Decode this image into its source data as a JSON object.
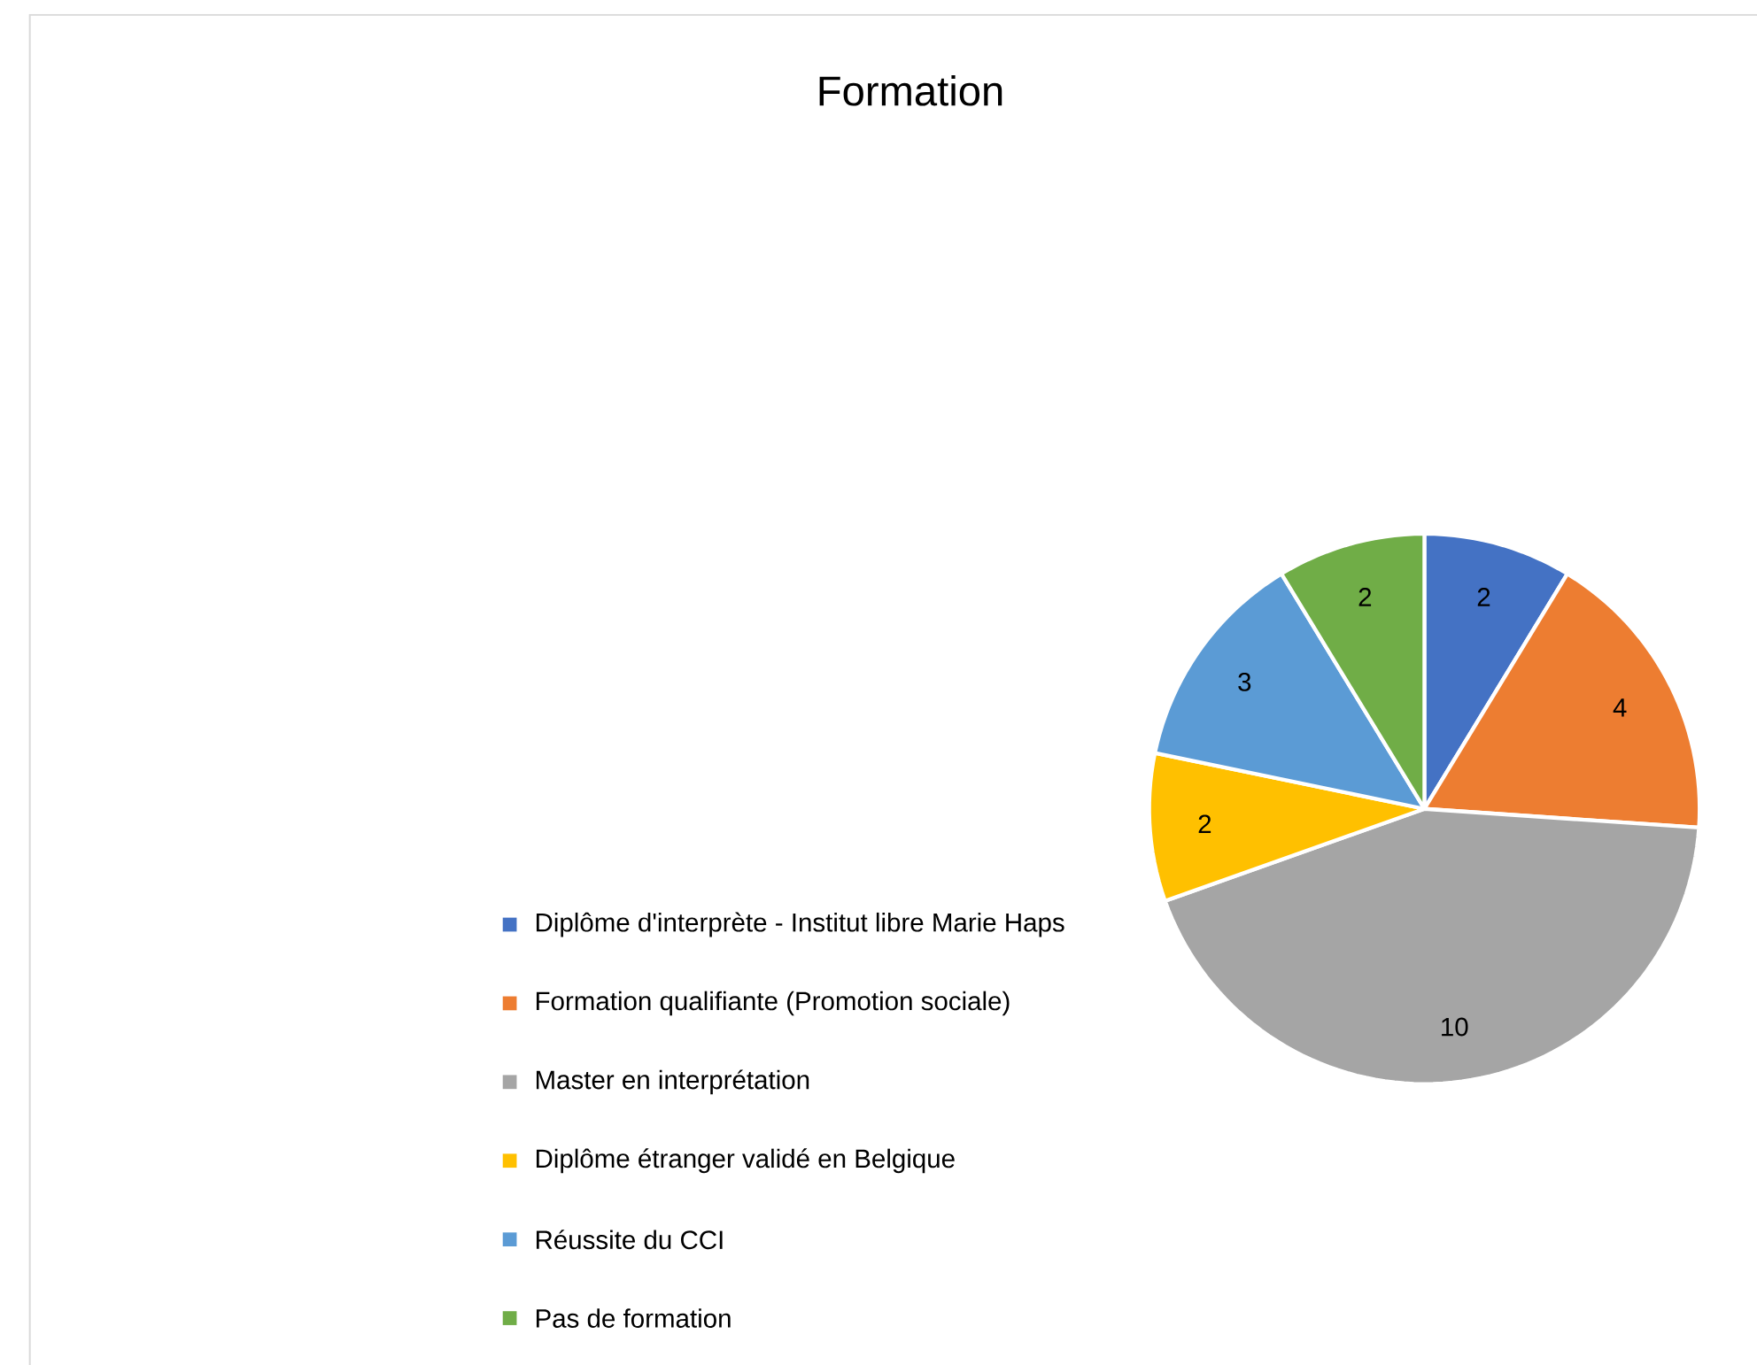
{
  "chart_data": {
    "type": "pie",
    "title": "Formation",
    "categories": [
      "Diplôme d'interprète - Institut libre Marie Haps",
      "Formation qualifiante (Promotion sociale)",
      "Master en interprétation",
      "Diplôme étranger validé en Belgique",
      "Réussite du CCI",
      "Pas de formation"
    ],
    "values": [
      2,
      4,
      10,
      2,
      3,
      2
    ],
    "colors": [
      "#4472c4",
      "#ed7d31",
      "#a5a5a5",
      "#ffc000",
      "#5b9bd5",
      "#70ad47"
    ],
    "data_labels": true,
    "legend": "bottom"
  }
}
